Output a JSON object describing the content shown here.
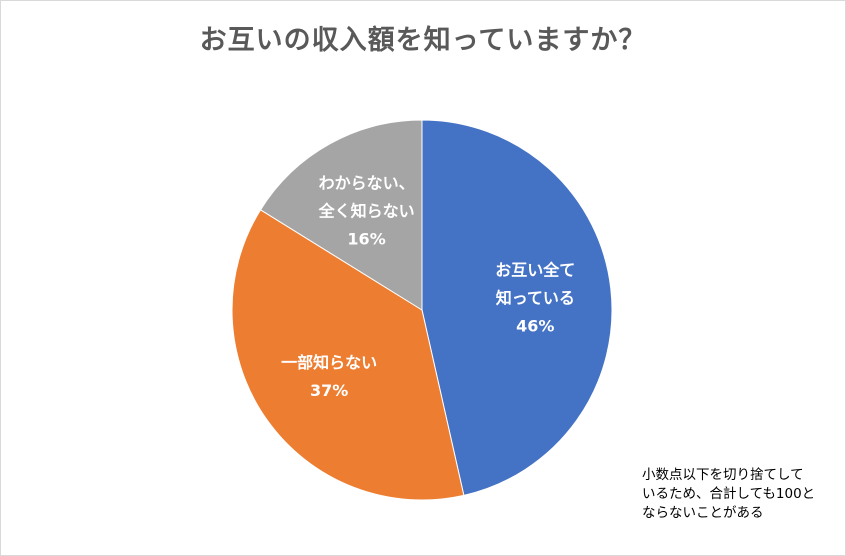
{
  "chart_data": {
    "type": "pie",
    "title": "お互いの収入額を知っていますか？",
    "slices": [
      {
        "label_lines": [
          "お互い全て",
          "知っている"
        ],
        "value": 46,
        "value_label": "46%",
        "color": "#4472c4"
      },
      {
        "label_lines": [
          "一部知らない"
        ],
        "value": 37,
        "value_label": "37%",
        "color": "#ed7d31"
      },
      {
        "label_lines": [
          "わからない、",
          "全く知らない"
        ],
        "value": 16,
        "value_label": "16%",
        "color": "#a5a5a5"
      }
    ],
    "start_angle_deg": 0,
    "direction": "clockwise"
  },
  "note_lines": [
    "小数点以下を切り捨てして",
    "いるため、合計しても100と",
    "ならないことがある"
  ]
}
